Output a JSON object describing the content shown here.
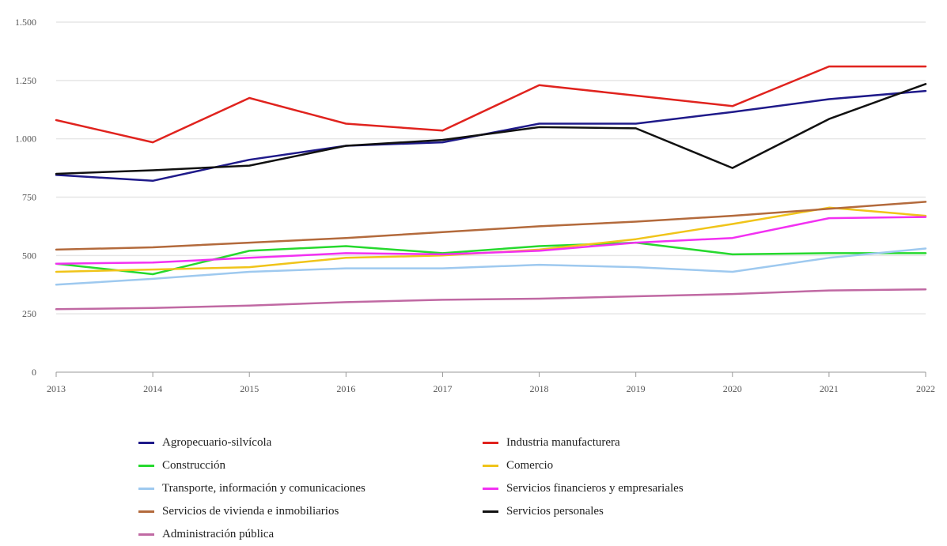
{
  "chart_data": {
    "type": "line",
    "title": "",
    "xlabel": "",
    "ylabel": "",
    "x": [
      "2013",
      "2014",
      "2015",
      "2016",
      "2017",
      "2018",
      "2019",
      "2020",
      "2021",
      "2022"
    ],
    "ylim": [
      0,
      1500
    ],
    "yticks": [
      0,
      250,
      500,
      750,
      1000,
      1250,
      1500
    ],
    "ytick_labels": [
      "0",
      "250",
      "500",
      "750",
      "1.000",
      "1.250",
      "1.500"
    ],
    "grid": true,
    "legend_position": "bottom",
    "series": [
      {
        "name": "Agropecuario-silvícola",
        "color": "#1f1a8a",
        "values": [
          845,
          820,
          910,
          970,
          985,
          1065,
          1065,
          1115,
          1170,
          1205
        ]
      },
      {
        "name": "Industria manufacturera",
        "color": "#e0231e",
        "values": [
          1080,
          985,
          1175,
          1065,
          1035,
          1230,
          1185,
          1140,
          1310,
          1310
        ]
      },
      {
        "name": "Construcción",
        "color": "#26d92e",
        "values": [
          465,
          420,
          520,
          540,
          510,
          540,
          555,
          505,
          510,
          510
        ]
      },
      {
        "name": "Comercio",
        "color": "#f0c419",
        "values": [
          430,
          440,
          450,
          490,
          500,
          525,
          570,
          635,
          705,
          670
        ]
      },
      {
        "name": "Transporte, información y comunicaciones",
        "color": "#9ec9ef",
        "values": [
          375,
          400,
          430,
          445,
          445,
          460,
          450,
          430,
          490,
          530
        ]
      },
      {
        "name": "Servicios financieros y empresariales",
        "color": "#f230f2",
        "values": [
          465,
          470,
          490,
          510,
          505,
          520,
          555,
          575,
          660,
          665
        ]
      },
      {
        "name": "Servicios de vivienda e inmobiliarios",
        "color": "#b36a3c",
        "values": [
          525,
          535,
          555,
          575,
          600,
          625,
          645,
          670,
          700,
          730
        ]
      },
      {
        "name": "Servicios personales",
        "color": "#111111",
        "values": [
          850,
          865,
          885,
          970,
          995,
          1050,
          1045,
          875,
          1085,
          1235
        ]
      },
      {
        "name": "Administración pública",
        "color": "#c069a3",
        "values": [
          270,
          275,
          285,
          300,
          310,
          315,
          325,
          335,
          350,
          355
        ]
      }
    ]
  }
}
